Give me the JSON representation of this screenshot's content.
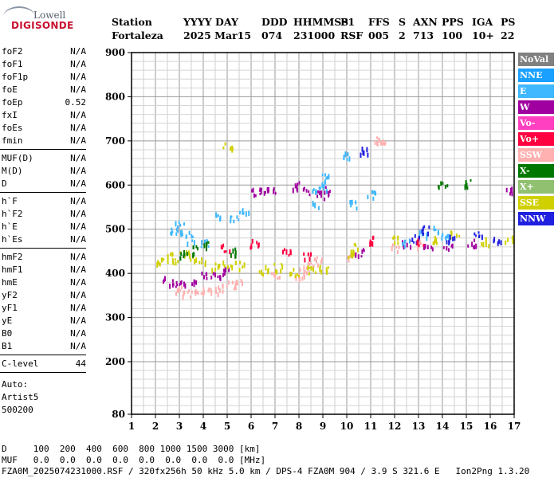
{
  "logo": {
    "line1": "Lowell",
    "line2": "DIGISONDE"
  },
  "header": {
    "labels": [
      "Station",
      "YYYY DAY",
      "DDD",
      "HHMMSS",
      "P1",
      "FFS",
      "S",
      "AXN",
      "PPS",
      "IGA",
      "PS"
    ],
    "values": [
      "Fortaleza",
      "2025 Mar15",
      "074",
      "231000",
      "RSF",
      "005",
      "2",
      "713",
      "100",
      "10+",
      "22"
    ]
  },
  "params": {
    "group1": [
      {
        "name": "foF2",
        "value": "N/A"
      },
      {
        "name": "foF1",
        "value": "N/A"
      },
      {
        "name": "foF1p",
        "value": "N/A"
      },
      {
        "name": "foE",
        "value": "N/A"
      },
      {
        "name": "foEp",
        "value": "0.52"
      },
      {
        "name": "fxI",
        "value": "N/A"
      },
      {
        "name": "foEs",
        "value": "N/A"
      },
      {
        "name": "fmin",
        "value": "N/A"
      }
    ],
    "group2": [
      {
        "name": "MUF(D)",
        "value": "N/A"
      },
      {
        "name": "M(D)",
        "value": "N/A"
      },
      {
        "name": "D",
        "value": "N/A"
      }
    ],
    "group3": [
      {
        "name": "h`F",
        "value": "N/A"
      },
      {
        "name": "h`F2",
        "value": "N/A"
      },
      {
        "name": "h`E",
        "value": "N/A"
      },
      {
        "name": "h`Es",
        "value": "N/A"
      }
    ],
    "group4": [
      {
        "name": "hmF2",
        "value": "N/A"
      },
      {
        "name": "hmF1",
        "value": "N/A"
      },
      {
        "name": "hmE",
        "value": "N/A"
      },
      {
        "name": "yF2",
        "value": "N/A"
      },
      {
        "name": "yF1",
        "value": "N/A"
      },
      {
        "name": "yE",
        "value": "N/A"
      },
      {
        "name": "B0",
        "value": "N/A"
      },
      {
        "name": "B1",
        "value": "N/A"
      }
    ],
    "clevel": {
      "name": "C-level",
      "value": "44"
    },
    "auto": [
      "Auto:",
      "Artist5",
      "500200"
    ]
  },
  "footer": {
    "line1": "D     100  200  400  600  800 1000 1500 3000 [km]",
    "line2": "MUF   0.0  0.0  0.0  0.0  0.0  0.0  0.0  0.0 [MHz]",
    "line3": "FZA0M_2025074231000.RSF / 320fx256h 50 kHz 5.0 km / DPS-4 FZA0M 904 / 3.9 S 321.6 E   Ion2Png 1.3.20"
  },
  "legend": [
    {
      "label": "NoVal",
      "color": "#808080"
    },
    {
      "label": "NNE",
      "color": "#1aa0ff"
    },
    {
      "label": "E",
      "color": "#40b8ff"
    },
    {
      "label": "W",
      "color": "#a000a0"
    },
    {
      "label": "Vo-",
      "color": "#ff40c0"
    },
    {
      "label": "Vo+",
      "color": "#ff0040"
    },
    {
      "label": "SSW",
      "color": "#ffb0b0"
    },
    {
      "label": "X-",
      "color": "#007800"
    },
    {
      "label": "X+",
      "color": "#90c070"
    },
    {
      "label": "SSE",
      "color": "#d0d000"
    },
    {
      "label": "NNW",
      "color": "#2020e0"
    }
  ],
  "chart_data": {
    "type": "scatter",
    "x_ticks": [
      "1",
      "2",
      "3",
      "4",
      "5",
      "6",
      "7",
      "8",
      "9",
      "10",
      "11",
      "12",
      "13",
      "14",
      "15",
      "16",
      "17"
    ],
    "y_ticks": [
      "80",
      "200",
      "300",
      "400",
      "500",
      "600",
      "700",
      "800",
      "900"
    ],
    "xlim": [
      1,
      17
    ],
    "ylim": [
      80,
      900
    ],
    "series": [
      {
        "name": "SSW",
        "color": "#ffb0b0",
        "points": [
          [
            3.0,
            365
          ],
          [
            3.3,
            360
          ],
          [
            3.6,
            358
          ],
          [
            4.0,
            362
          ],
          [
            4.4,
            365
          ],
          [
            4.8,
            370
          ],
          [
            5.2,
            375
          ],
          [
            5.5,
            380
          ],
          [
            7.0,
            395
          ],
          [
            8.0,
            400
          ],
          [
            8.2,
            410
          ],
          [
            8.4,
            420
          ],
          [
            8.8,
            430
          ],
          [
            10.2,
            440
          ],
          [
            11.4,
            705
          ],
          [
            11.3,
            700
          ],
          [
            12.0,
            460
          ],
          [
            13.0,
            470
          ]
        ]
      },
      {
        "name": "W",
        "color": "#a000a0",
        "points": [
          [
            2.5,
            385
          ],
          [
            2.8,
            380
          ],
          [
            3.2,
            378
          ],
          [
            3.6,
            382
          ],
          [
            4.0,
            395
          ],
          [
            4.5,
            400
          ],
          [
            5.0,
            410
          ],
          [
            6.2,
            585
          ],
          [
            6.5,
            590
          ],
          [
            6.8,
            592
          ],
          [
            7.8,
            600
          ],
          [
            8.3,
            590
          ],
          [
            8.9,
            580
          ],
          [
            9.1,
            590
          ],
          [
            10.5,
            450
          ],
          [
            12.5,
            470
          ],
          [
            13.4,
            460
          ],
          [
            14.2,
            460
          ],
          [
            15.2,
            470
          ],
          [
            16.8,
            590
          ]
        ]
      },
      {
        "name": "SSE",
        "color": "#d0d000",
        "points": [
          [
            2.2,
            430
          ],
          [
            2.5,
            440
          ],
          [
            2.8,
            430
          ],
          [
            3.2,
            445
          ],
          [
            3.6,
            440
          ],
          [
            4.0,
            430
          ],
          [
            4.5,
            420
          ],
          [
            5.0,
            425
          ],
          [
            5.5,
            420
          ],
          [
            6.5,
            410
          ],
          [
            7.1,
            415
          ],
          [
            7.8,
            405
          ],
          [
            8.5,
            410
          ],
          [
            9.0,
            415
          ],
          [
            10.1,
            445
          ],
          [
            10.3,
            460
          ],
          [
            12.1,
            480
          ],
          [
            13.6,
            480
          ],
          [
            14.5,
            490
          ],
          [
            15.8,
            475
          ],
          [
            16.8,
            480
          ],
          [
            5.0,
            690
          ]
        ]
      },
      {
        "name": "E",
        "color": "#40b8ff",
        "points": [
          [
            2.8,
            500
          ],
          [
            3.0,
            510
          ],
          [
            3.2,
            490
          ],
          [
            3.4,
            480
          ],
          [
            4.0,
            470
          ],
          [
            4.6,
            530
          ],
          [
            5.3,
            530
          ],
          [
            5.7,
            540
          ],
          [
            8.7,
            590
          ],
          [
            9.0,
            600
          ],
          [
            9.1,
            620
          ],
          [
            8.6,
            560
          ],
          [
            10.0,
            670
          ],
          [
            10.3,
            560
          ],
          [
            11.0,
            580
          ],
          [
            12.4,
            470
          ],
          [
            13.2,
            490
          ],
          [
            13.8,
            500
          ],
          [
            14.1,
            490
          ]
        ]
      },
      {
        "name": "NNW",
        "color": "#2020e0",
        "points": [
          [
            13.3,
            500
          ],
          [
            14.3,
            480
          ],
          [
            15.5,
            490
          ],
          [
            16.3,
            475
          ],
          [
            12.8,
            480
          ],
          [
            10.7,
            680
          ]
        ]
      },
      {
        "name": "Vo+",
        "color": "#ff0040",
        "points": [
          [
            4.9,
            460
          ],
          [
            6.1,
            470
          ],
          [
            7.5,
            450
          ],
          [
            8.3,
            440
          ],
          [
            11.0,
            480
          ],
          [
            13.1,
            470
          ]
        ]
      },
      {
        "name": "X-",
        "color": "#007800",
        "points": [
          [
            3.1,
            445
          ],
          [
            3.7,
            455
          ],
          [
            4.1,
            465
          ],
          [
            5.2,
            450
          ],
          [
            14.0,
            600
          ],
          [
            15.1,
            605
          ]
        ]
      }
    ]
  }
}
